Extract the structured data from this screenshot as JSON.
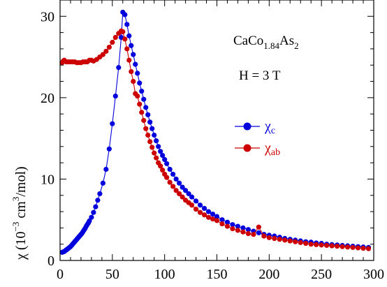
{
  "chart_data": {
    "type": "scatter",
    "xlim": [
      0,
      300
    ],
    "ylim": [
      0,
      32
    ],
    "x_ticks": [
      0,
      50,
      100,
      150,
      200,
      250,
      300
    ],
    "x_tick_labels": [
      "0",
      "50",
      "100",
      "150",
      "200",
      "250",
      "300"
    ],
    "y_ticks": [
      0,
      10,
      20,
      30
    ],
    "y_tick_labels": [
      "0",
      "10",
      "20",
      "30"
    ],
    "xlabel": "",
    "ylabel": {
      "prefix": "χ (10",
      "exp1": "−3",
      "mid": " cm",
      "exp2": "3",
      "suffix": "/mol)"
    },
    "grid": false,
    "annotations": {
      "compound": {
        "base1": "CaCo",
        "sub1": "1.84",
        "base2": "As",
        "sub2": "2"
      },
      "field": "H = 3 T"
    },
    "legend_position": "right-middle",
    "series": [
      {
        "name": "χc",
        "legend": {
          "symbol": "χ",
          "subscript": "c"
        },
        "color": "#0000dd",
        "connected": true,
        "x": [
          2,
          3,
          4,
          5,
          6,
          7,
          8,
          9,
          10,
          11,
          12,
          13,
          14,
          15,
          16,
          17,
          18,
          19,
          20,
          21,
          22,
          23,
          24,
          25,
          26,
          27,
          28,
          30,
          32,
          34,
          36,
          38,
          41,
          44,
          47,
          50,
          53,
          56,
          58.5,
          60,
          62,
          64,
          66,
          68,
          70,
          72,
          74,
          76,
          78,
          80,
          82,
          84,
          86,
          88,
          90,
          92,
          94,
          96,
          98,
          100,
          102,
          105,
          108,
          111,
          114,
          117,
          120,
          123,
          126,
          130,
          134,
          138,
          142,
          146,
          150,
          155,
          160,
          165,
          170,
          175,
          180,
          185,
          190,
          195,
          200,
          205,
          210,
          215,
          220,
          225,
          230,
          235,
          240,
          245,
          250,
          255,
          260,
          265,
          270,
          275,
          280,
          285,
          290,
          295
        ],
        "y": [
          1.0,
          1.05,
          1.1,
          1.2,
          1.3,
          1.4,
          1.5,
          1.6,
          1.7,
          1.85,
          2.0,
          2.15,
          2.3,
          2.45,
          2.6,
          2.75,
          2.9,
          3.05,
          3.2,
          3.35,
          3.55,
          3.75,
          3.95,
          4.2,
          4.4,
          4.6,
          4.85,
          5.3,
          5.9,
          6.6,
          7.4,
          8.2,
          9.5,
          11.2,
          13.7,
          16.8,
          20.2,
          23.7,
          27.4,
          30.5,
          30.2,
          29.0,
          27.6,
          26.4,
          25.3,
          24.1,
          23.0,
          21.8,
          20.8,
          19.8,
          18.8,
          17.9,
          17.0,
          16.2,
          15.4,
          14.7,
          14.0,
          13.4,
          12.9,
          12.4,
          11.9,
          11.2,
          10.6,
          10.0,
          9.5,
          9.0,
          8.6,
          8.2,
          7.8,
          7.3,
          6.8,
          6.4,
          6.0,
          5.7,
          5.4,
          5.0,
          4.7,
          4.4,
          4.2,
          4.0,
          3.8,
          3.6,
          3.4,
          3.2,
          3.1,
          3.0,
          2.85,
          2.7,
          2.6,
          2.5,
          2.4,
          2.3,
          2.25,
          2.15,
          2.1,
          2.0,
          1.95,
          1.9,
          1.85,
          1.8,
          1.75,
          1.7,
          1.65,
          1.6
        ]
      },
      {
        "name": "χab",
        "legend": {
          "symbol": "χ",
          "subscript": "ab"
        },
        "color": "#cc0000",
        "connected": true,
        "x": [
          2,
          3,
          4,
          6,
          8,
          10,
          12,
          14,
          16,
          18,
          20,
          22,
          24,
          26,
          28,
          30,
          32,
          35,
          38,
          41,
          44,
          47,
          50,
          53,
          56,
          58.5,
          60,
          62,
          64,
          66,
          68,
          70,
          72,
          74,
          76,
          78,
          80,
          82,
          84,
          86,
          88,
          90,
          92,
          94,
          96,
          98,
          100,
          102,
          105,
          108,
          111,
          114,
          117,
          120,
          123,
          126,
          130,
          134,
          138,
          142,
          146,
          150,
          155,
          160,
          165,
          170,
          175,
          180,
          185,
          190,
          195,
          200,
          205,
          210,
          215,
          220,
          225,
          230,
          235,
          240,
          245,
          250,
          255,
          260,
          265,
          270,
          275,
          280,
          285,
          290,
          295
        ],
        "y": [
          24.3,
          24.5,
          24.6,
          24.4,
          24.4,
          24.4,
          24.4,
          24.4,
          24.3,
          24.3,
          24.3,
          24.4,
          24.4,
          24.4,
          24.6,
          24.6,
          24.5,
          24.7,
          25.0,
          25.3,
          25.7,
          26.2,
          26.8,
          27.4,
          27.9,
          28.2,
          28.1,
          27.2,
          26.0,
          24.6,
          23.2,
          22.0,
          20.5,
          20.2,
          19.2,
          18.2,
          17.2,
          16.2,
          15.4,
          14.6,
          13.9,
          13.2,
          12.6,
          12.0,
          11.6,
          11.1,
          10.6,
          10.2,
          9.6,
          9.1,
          8.6,
          8.2,
          7.8,
          7.4,
          7.1,
          6.8,
          6.3,
          5.9,
          5.6,
          5.3,
          5.1,
          4.9,
          4.5,
          4.2,
          3.9,
          3.7,
          3.5,
          3.3,
          3.2,
          4.1,
          3.0,
          2.8,
          2.7,
          2.6,
          2.5,
          2.4,
          2.3,
          2.2,
          2.1,
          2.0,
          1.95,
          1.9,
          1.85,
          1.8,
          1.75,
          1.7,
          1.65,
          1.6,
          1.55,
          1.5,
          1.45
        ]
      }
    ]
  }
}
